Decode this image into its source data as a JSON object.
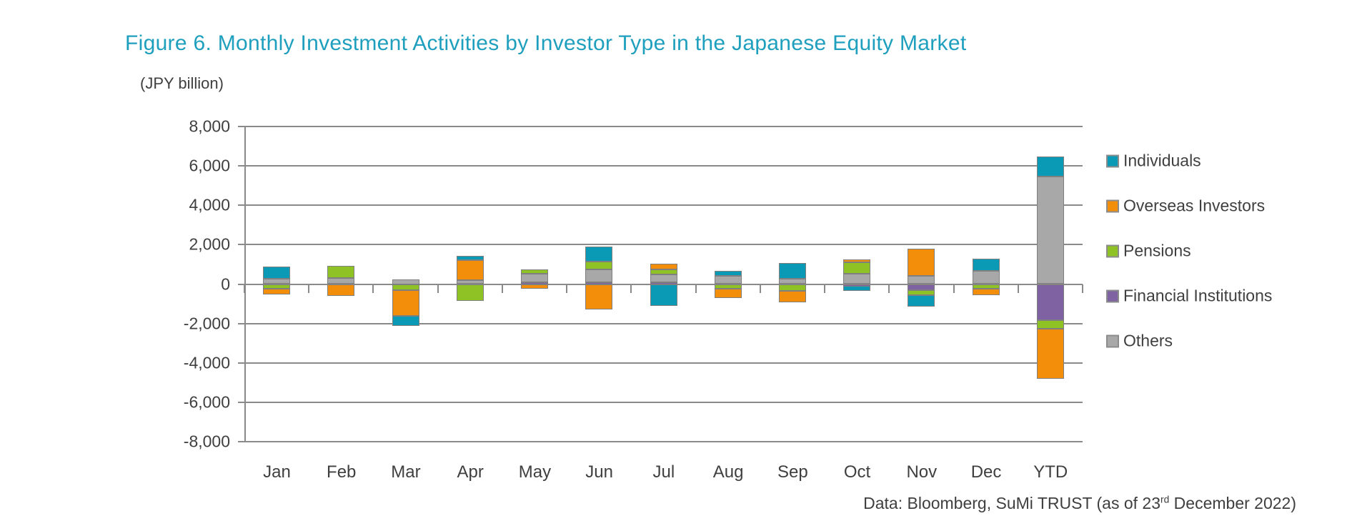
{
  "title": "Figure 6. Monthly Investment Activities by Investor Type in the Japanese Equity Market",
  "axis_unit_label": "(JPY billion)",
  "footer": {
    "prefix": "Data: Bloomberg, SuMi TRUST (as of 23",
    "superscript": "rd",
    "suffix": " December 2022)"
  },
  "chart_data": {
    "type": "bar",
    "stacked": true,
    "title": "Figure 6. Monthly Investment Activities by Investor Type in the Japanese Equity Market",
    "ylabel": "(JPY billion)",
    "ylim": [
      -8000,
      8000
    ],
    "grid": true,
    "legend_position": "right",
    "categories": [
      "Jan",
      "Feb",
      "Mar",
      "Apr",
      "May",
      "Jun",
      "Jul",
      "Aug",
      "Sep",
      "Oct",
      "Nov",
      "Dec",
      "YTD"
    ],
    "y_ticks": [
      {
        "value": 8000,
        "label": "8,000"
      },
      {
        "value": 6000,
        "label": "6,000"
      },
      {
        "value": 4000,
        "label": "4,000"
      },
      {
        "value": 2000,
        "label": "2,000"
      },
      {
        "value": 0,
        "label": "0"
      },
      {
        "value": -2000,
        "label": "-2,000"
      },
      {
        "value": -4000,
        "label": "-4,000"
      },
      {
        "value": -6000,
        "label": "-6,000"
      },
      {
        "value": -8000,
        "label": "-8,000"
      }
    ],
    "stack_order_from_zero": [
      "Financial Institutions",
      "Others",
      "Pensions",
      "Overseas Investors",
      "Individuals"
    ],
    "series": [
      {
        "name": "Individuals",
        "color": "#0a9ab5",
        "values": [
          600,
          0,
          -520,
          220,
          0,
          760,
          -1100,
          280,
          790,
          -250,
          -570,
          630,
          1020
        ]
      },
      {
        "name": "Overseas Investors",
        "color": "#f28e0a",
        "values": [
          -300,
          -600,
          -1300,
          1030,
          -250,
          -1300,
          290,
          -450,
          -550,
          150,
          1370,
          -340,
          -2550
        ]
      },
      {
        "name": "Pensions",
        "color": "#8ec225",
        "values": [
          -240,
          610,
          -300,
          -850,
          220,
          390,
          280,
          -240,
          -360,
          580,
          -280,
          -220,
          -430
        ]
      },
      {
        "name": "Financial Institutions",
        "color": "#7e62a1",
        "values": [
          0,
          0,
          0,
          0,
          80,
          80,
          80,
          0,
          0,
          -100,
          -300,
          0,
          -1820
        ]
      },
      {
        "name": "Others",
        "color": "#a8a8a8",
        "values": [
          280,
          300,
          250,
          200,
          460,
          680,
          400,
          400,
          280,
          520,
          430,
          660,
          5450
        ]
      }
    ]
  }
}
